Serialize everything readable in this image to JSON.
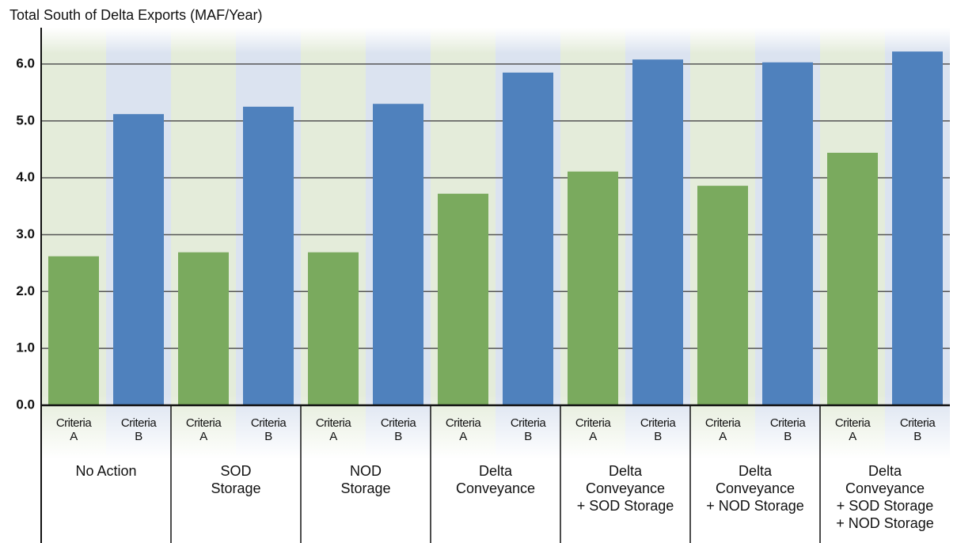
{
  "chart_data": {
    "type": "bar",
    "title": "Total South of Delta Exports (MAF/Year)",
    "categories": [
      [
        "No Action"
      ],
      [
        "SOD",
        "Storage"
      ],
      [
        "NOD",
        "Storage"
      ],
      [
        "Delta",
        "Conveyance"
      ],
      [
        "Delta",
        "Conveyance",
        "+ SOD Storage"
      ],
      [
        "Delta",
        "Conveyance",
        "+ NOD Storage"
      ],
      [
        "Delta",
        "Conveyance",
        "+ SOD Storage",
        "+ NOD Storage"
      ]
    ],
    "series": [
      {
        "name": "Criteria A",
        "color": "#7aaa5e",
        "background": "#e4ecda",
        "values": [
          2.62,
          2.69,
          2.69,
          3.72,
          4.11,
          3.86,
          4.44
        ]
      },
      {
        "name": "Criteria B",
        "color": "#4f81bd",
        "background": "#dbe3f0",
        "values": [
          5.12,
          5.25,
          5.3,
          5.85,
          6.08,
          6.03,
          6.22
        ]
      }
    ],
    "ylim": [
      0,
      6.5
    ],
    "yticks": [
      {
        "value": 0,
        "label": "0.0"
      },
      {
        "value": 1,
        "label": "1.0"
      },
      {
        "value": 2,
        "label": "2.0"
      },
      {
        "value": 3,
        "label": "3.0"
      },
      {
        "value": 4,
        "label": "4.0"
      },
      {
        "value": 5,
        "label": "5.0"
      },
      {
        "value": 6,
        "label": "6.0"
      }
    ],
    "grid": true
  }
}
